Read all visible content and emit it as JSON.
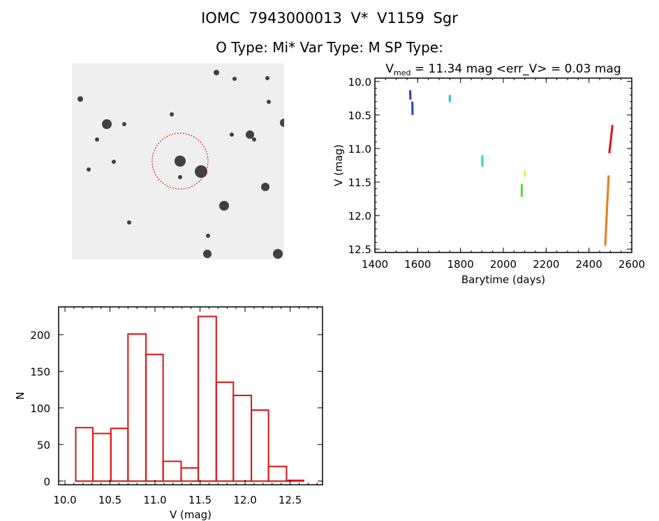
{
  "title": "IOMC 7943000013   V* V1159 Sgr",
  "subtitle": "O Type: Mi*  Var Type: M  SP Type:",
  "chart_data": [
    {
      "type": "scatter",
      "title": "V_med = 11.34 mag <err_V> = 0.03 mag",
      "title_main": "V",
      "title_sub": "med",
      "title_rest": " = 11.34 mag <err_V> = 0.03 mag",
      "xlabel": "Barytime (days)",
      "ylabel": "V (mag)",
      "xlim": [
        1400,
        2600
      ],
      "ylim": [
        12.55,
        9.95
      ],
      "y_inverted": true,
      "xticks": [
        "1400",
        "1600",
        "1800",
        "2000",
        "2200",
        "2400",
        "2600"
      ],
      "yticks": [
        "10.0",
        "10.5",
        "11.0",
        "11.5",
        "12.0",
        "12.5"
      ],
      "series": [
        {
          "color": "#6a1fa0",
          "x": [
            1565,
            1566
          ],
          "y": [
            10.13,
            10.27
          ]
        },
        {
          "color": "#1f3fc8",
          "x": [
            1575,
            1576
          ],
          "y": [
            10.3,
            10.5
          ]
        },
        {
          "color": "#3ab8e0",
          "x": [
            1750,
            1750
          ],
          "y": [
            10.2,
            10.31
          ]
        },
        {
          "color": "#2ee08a",
          "x": [
            1902,
            1902
          ],
          "y": [
            11.1,
            11.27
          ]
        },
        {
          "color": "#55dd33",
          "x": [
            2086,
            2086
          ],
          "y": [
            11.53,
            11.72
          ]
        },
        {
          "color": "#e8f040",
          "x": [
            2100,
            2100
          ],
          "y": [
            11.33,
            11.42
          ]
        },
        {
          "color": "#dd1111",
          "x": [
            2495,
            2510
          ],
          "y": [
            11.07,
            10.65
          ]
        },
        {
          "color": "#e87a1a",
          "x": [
            2476,
            2492
          ],
          "y": [
            12.45,
            11.4
          ]
        }
      ]
    },
    {
      "type": "bar",
      "xlabel": "V (mag)",
      "ylabel": "N",
      "xlim": [
        9.93,
        12.86
      ],
      "ylim": [
        -5,
        238
      ],
      "xticks": [
        "10.0",
        "10.5",
        "11.0",
        "11.5",
        "12.0",
        "12.5"
      ],
      "yticks": [
        "0",
        "50",
        "100",
        "150",
        "200"
      ],
      "bin_edges": [
        10.12,
        10.31,
        10.51,
        10.7,
        10.9,
        11.09,
        11.29,
        11.48,
        11.68,
        11.87,
        12.07,
        12.26,
        12.46,
        12.65
      ],
      "values": [
        73,
        65,
        72,
        201,
        173,
        27,
        18,
        225,
        135,
        117,
        97,
        20,
        1
      ],
      "color": "#dd1111"
    }
  ]
}
